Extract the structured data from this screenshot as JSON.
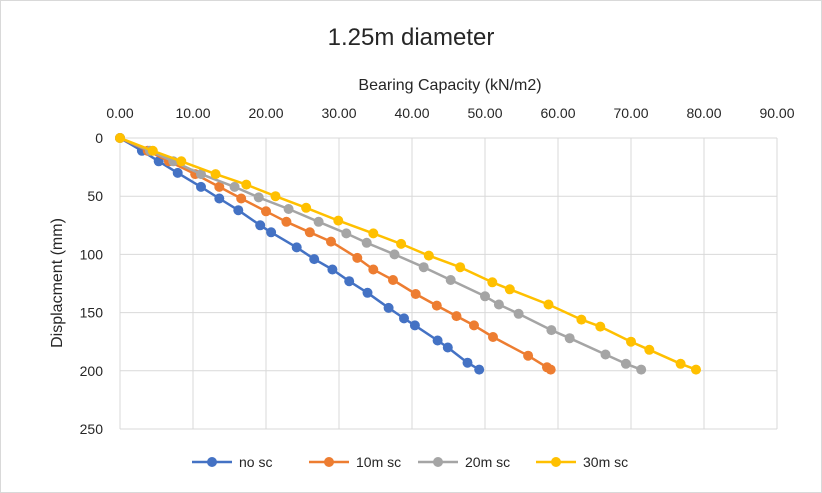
{
  "chart_data": {
    "type": "scatter",
    "title": "1.25m diameter",
    "xlabel": "Bearing Capacity (kN/m2)",
    "ylabel": "Displacment (mm)",
    "x_axis_position": "top",
    "y_axis_reversed": true,
    "xlim": [
      0,
      90
    ],
    "ylim": [
      0,
      250
    ],
    "x_ticks": [
      "0.00",
      "10.00",
      "20.00",
      "30.00",
      "40.00",
      "50.00",
      "60.00",
      "70.00",
      "80.00",
      "90.00"
    ],
    "y_ticks": [
      "0",
      "50",
      "100",
      "150",
      "200",
      "250"
    ],
    "grid": true,
    "legend_position": "bottom",
    "series": [
      {
        "name": "no sc",
        "color": "#4472c4",
        "points": [
          [
            0,
            0
          ],
          [
            3.0,
            11
          ],
          [
            5.3,
            20
          ],
          [
            7.9,
            30
          ],
          [
            11.1,
            42
          ],
          [
            13.6,
            52
          ],
          [
            16.2,
            62
          ],
          [
            19.2,
            75
          ],
          [
            20.7,
            81
          ],
          [
            24.2,
            94
          ],
          [
            26.6,
            104
          ],
          [
            29.1,
            113
          ],
          [
            31.4,
            123
          ],
          [
            33.9,
            133
          ],
          [
            36.8,
            146
          ],
          [
            38.9,
            155
          ],
          [
            40.4,
            161
          ],
          [
            43.5,
            174
          ],
          [
            44.9,
            180
          ],
          [
            47.6,
            193
          ],
          [
            49.2,
            199
          ]
        ]
      },
      {
        "name": "10m sc",
        "color": "#ed7d31",
        "points": [
          [
            0,
            0
          ],
          [
            3.8,
            11
          ],
          [
            6.7,
            20
          ],
          [
            10.3,
            31
          ],
          [
            13.6,
            42
          ],
          [
            16.6,
            52
          ],
          [
            20.0,
            63
          ],
          [
            22.8,
            72
          ],
          [
            26.0,
            81
          ],
          [
            28.9,
            89
          ],
          [
            32.5,
            103
          ],
          [
            34.7,
            113
          ],
          [
            37.4,
            122
          ],
          [
            40.5,
            134
          ],
          [
            43.4,
            144
          ],
          [
            46.1,
            153
          ],
          [
            48.5,
            161
          ],
          [
            51.1,
            171
          ],
          [
            55.9,
            187
          ],
          [
            58.5,
            197
          ],
          [
            59.0,
            199
          ]
        ]
      },
      {
        "name": "20m sc",
        "color": "#a5a5a5",
        "points": [
          [
            0,
            0
          ],
          [
            4.1,
            11
          ],
          [
            7.3,
            20
          ],
          [
            11.1,
            31
          ],
          [
            15.7,
            42
          ],
          [
            19.0,
            51
          ],
          [
            23.1,
            61
          ],
          [
            27.2,
            72
          ],
          [
            31.0,
            82
          ],
          [
            33.8,
            90
          ],
          [
            37.6,
            100
          ],
          [
            41.6,
            111
          ],
          [
            45.3,
            122
          ],
          [
            50.0,
            136
          ],
          [
            51.9,
            143
          ],
          [
            54.6,
            151
          ],
          [
            59.1,
            165
          ],
          [
            61.6,
            172
          ],
          [
            66.5,
            186
          ],
          [
            69.3,
            194
          ],
          [
            71.4,
            199
          ]
        ]
      },
      {
        "name": "30m sc",
        "color": "#ffc000",
        "points": [
          [
            0,
            0
          ],
          [
            4.5,
            11
          ],
          [
            8.4,
            20
          ],
          [
            13.1,
            31
          ],
          [
            17.3,
            40
          ],
          [
            21.3,
            50
          ],
          [
            25.5,
            60
          ],
          [
            29.9,
            71
          ],
          [
            34.7,
            82
          ],
          [
            38.5,
            91
          ],
          [
            42.3,
            101
          ],
          [
            46.6,
            111
          ],
          [
            51.0,
            124
          ],
          [
            53.4,
            130
          ],
          [
            58.7,
            143
          ],
          [
            63.2,
            156
          ],
          [
            65.8,
            162
          ],
          [
            70.0,
            175
          ],
          [
            72.5,
            182
          ],
          [
            76.8,
            194
          ],
          [
            78.9,
            199
          ]
        ]
      }
    ]
  }
}
